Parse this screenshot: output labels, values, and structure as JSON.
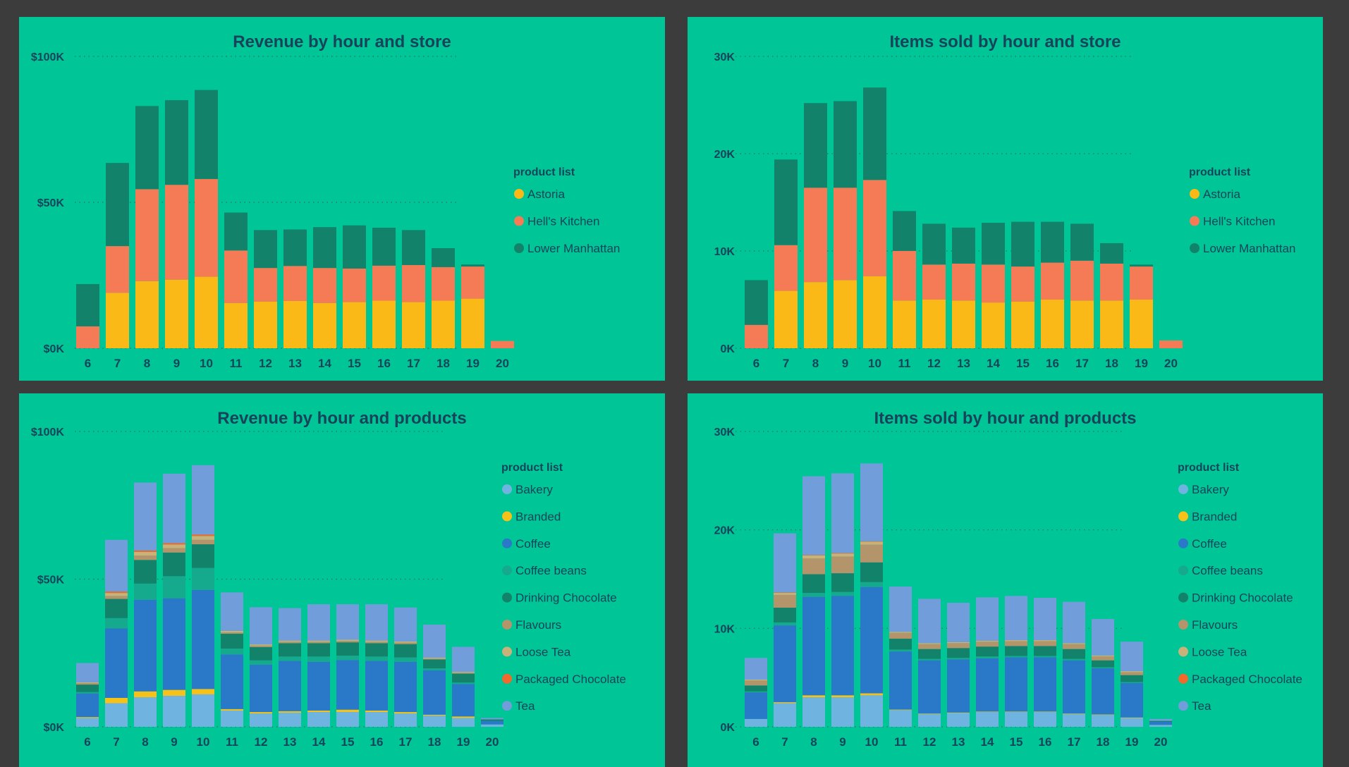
{
  "colors": {
    "background": "#3c3c3c",
    "panel": "#00c596",
    "text": "#17445a",
    "Astoria": "#fbb917",
    "Hell's Kitchen": "#f47b55",
    "Lower Manhattan": "#12836a",
    "Bakery": "#6fb3e0",
    "Branded": "#f6c21a",
    "Coffee": "#2a79c9",
    "Coffee beans": "#15a98e",
    "Drinking Chocolate": "#12836a",
    "Flavours": "#b4946b",
    "Loose Tea": "#c9b27a",
    "Packaged Chocolate": "#f2692c",
    "Tea": "#729ddb"
  },
  "chart_data": [
    {
      "type": "bar",
      "stacked": true,
      "title": "Revenue by hour and store",
      "categories": [
        "6",
        "7",
        "8",
        "9",
        "10",
        "11",
        "12",
        "13",
        "14",
        "15",
        "16",
        "17",
        "18",
        "19",
        "20"
      ],
      "ylim": [
        0,
        100000
      ],
      "yticks": [
        0,
        50000,
        100000
      ],
      "ytick_labels": [
        "$0K",
        "$50K",
        "$100K"
      ],
      "grid": true,
      "legend_title": "product list",
      "legend_position": "right",
      "series": [
        {
          "name": "Astoria",
          "values": [
            0,
            19000,
            23000,
            23500,
            24500,
            15500,
            16000,
            16200,
            15500,
            15800,
            16300,
            15800,
            16300,
            17000,
            0
          ]
        },
        {
          "name": "Hell's Kitchen",
          "values": [
            7500,
            16000,
            31500,
            32500,
            33500,
            18000,
            11500,
            12000,
            12000,
            11500,
            12000,
            12700,
            11500,
            11000,
            2500
          ]
        },
        {
          "name": "Lower Manhattan",
          "values": [
            14500,
            28500,
            28500,
            29000,
            30500,
            13000,
            13000,
            12500,
            14000,
            14800,
            13000,
            12000,
            6500,
            700,
            0
          ]
        }
      ]
    },
    {
      "type": "bar",
      "stacked": true,
      "title": "Items sold by hour and store",
      "categories": [
        "6",
        "7",
        "8",
        "9",
        "10",
        "11",
        "12",
        "13",
        "14",
        "15",
        "16",
        "17",
        "18",
        "19",
        "20"
      ],
      "ylim": [
        0,
        30000
      ],
      "yticks": [
        0,
        10000,
        20000,
        30000
      ],
      "ytick_labels": [
        "0K",
        "10K",
        "20K",
        "30K"
      ],
      "grid": true,
      "legend_title": "product list",
      "legend_position": "right",
      "series": [
        {
          "name": "Astoria",
          "values": [
            0,
            5900,
            6800,
            7000,
            7400,
            4900,
            5000,
            4900,
            4700,
            4800,
            5000,
            4900,
            4900,
            5000,
            0
          ]
        },
        {
          "name": "Hell's Kitchen",
          "values": [
            2400,
            4700,
            9700,
            9500,
            9900,
            5100,
            3600,
            3800,
            3900,
            3600,
            3800,
            4100,
            3800,
            3400,
            800
          ]
        },
        {
          "name": "Lower Manhattan",
          "values": [
            4600,
            8800,
            8700,
            8900,
            9500,
            4100,
            4200,
            3700,
            4300,
            4600,
            4200,
            3800,
            2100,
            200,
            0
          ]
        }
      ]
    },
    {
      "type": "bar",
      "stacked": true,
      "title": "Revenue by hour and products",
      "categories": [
        "6",
        "7",
        "8",
        "9",
        "10",
        "11",
        "12",
        "13",
        "14",
        "15",
        "16",
        "17",
        "18",
        "19",
        "20"
      ],
      "ylim": [
        0,
        100000
      ],
      "yticks": [
        0,
        50000,
        100000
      ],
      "ytick_labels": [
        "$0K",
        "$50K",
        "$100K"
      ],
      "grid": true,
      "legend_title": "product list",
      "legend_position": "right",
      "series": [
        {
          "name": "Bakery",
          "values": [
            3000,
            8000,
            10000,
            10500,
            11000,
            5500,
            4500,
            4800,
            5000,
            5000,
            5000,
            4500,
            3800,
            3000,
            800
          ]
        },
        {
          "name": "Branded",
          "values": [
            300,
            1800,
            2000,
            2000,
            1800,
            500,
            500,
            500,
            500,
            800,
            500,
            500,
            300,
            500,
            0
          ]
        },
        {
          "name": "Coffee",
          "values": [
            8000,
            23500,
            31000,
            31000,
            33500,
            18500,
            16000,
            17000,
            16500,
            16800,
            16800,
            17000,
            15000,
            11000,
            1200
          ]
        },
        {
          "name": "Coffee beans",
          "values": [
            500,
            3500,
            5500,
            7500,
            7500,
            2000,
            1500,
            1500,
            1800,
            1500,
            1500,
            1500,
            700,
            500,
            0
          ]
        },
        {
          "name": "Drinking Chocolate",
          "values": [
            2500,
            6500,
            8000,
            8000,
            8000,
            5000,
            4500,
            4500,
            4500,
            4500,
            4500,
            4500,
            3000,
            3000,
            500
          ]
        },
        {
          "name": "Flavours",
          "values": [
            500,
            1000,
            1500,
            1500,
            1500,
            500,
            500,
            500,
            500,
            500,
            500,
            500,
            300,
            300,
            0
          ]
        },
        {
          "name": "Loose Tea",
          "values": [
            300,
            1000,
            1200,
            1200,
            1300,
            500,
            400,
            400,
            400,
            400,
            400,
            400,
            300,
            300,
            0
          ]
        },
        {
          "name": "Packaged Chocolate",
          "values": [
            0,
            500,
            500,
            500,
            500,
            0,
            0,
            0,
            0,
            0,
            0,
            0,
            0,
            0,
            0
          ]
        },
        {
          "name": "Tea",
          "values": [
            6500,
            17500,
            23000,
            23500,
            23500,
            13000,
            12600,
            11000,
            12300,
            12000,
            12300,
            11500,
            11200,
            8500,
            500
          ]
        }
      ]
    },
    {
      "type": "bar",
      "stacked": true,
      "title": "Items sold by hour and products",
      "categories": [
        "6",
        "7",
        "8",
        "9",
        "10",
        "11",
        "12",
        "13",
        "14",
        "15",
        "16",
        "17",
        "18",
        "19",
        "20"
      ],
      "ylim": [
        0,
        30000
      ],
      "yticks": [
        0,
        10000,
        20000,
        30000
      ],
      "ytick_labels": [
        "0K",
        "10K",
        "20K",
        "30K"
      ],
      "grid": true,
      "legend_title": "product list",
      "legend_position": "right",
      "series": [
        {
          "name": "Bakery",
          "values": [
            800,
            2400,
            3000,
            3000,
            3200,
            1700,
            1300,
            1400,
            1500,
            1500,
            1500,
            1300,
            1200,
            900,
            200
          ]
        },
        {
          "name": "Branded",
          "values": [
            0,
            100,
            200,
            200,
            200,
            50,
            50,
            50,
            50,
            50,
            50,
            50,
            50,
            50,
            0
          ]
        },
        {
          "name": "Coffee",
          "values": [
            2700,
            7800,
            10000,
            10100,
            10800,
            5900,
            5400,
            5400,
            5400,
            5500,
            5500,
            5400,
            4700,
            3500,
            300
          ]
        },
        {
          "name": "Coffee beans",
          "values": [
            100,
            300,
            400,
            400,
            500,
            200,
            150,
            150,
            200,
            150,
            150,
            150,
            100,
            100,
            0
          ]
        },
        {
          "name": "Drinking Chocolate",
          "values": [
            600,
            1500,
            1900,
            1900,
            2000,
            1100,
            1000,
            1000,
            1000,
            1000,
            1000,
            1000,
            700,
            700,
            100
          ]
        },
        {
          "name": "Flavours",
          "values": [
            500,
            1300,
            1600,
            1700,
            1800,
            600,
            500,
            500,
            500,
            500,
            500,
            500,
            400,
            300,
            0
          ]
        },
        {
          "name": "Loose Tea",
          "values": [
            100,
            200,
            300,
            300,
            300,
            100,
            100,
            100,
            100,
            100,
            100,
            100,
            100,
            100,
            0
          ]
        },
        {
          "name": "Packaged Chocolate",
          "values": [
            0,
            50,
            50,
            50,
            50,
            0,
            0,
            0,
            0,
            0,
            0,
            0,
            0,
            0,
            0
          ]
        },
        {
          "name": "Tea",
          "values": [
            2200,
            6000,
            8000,
            8100,
            7900,
            4600,
            4500,
            4000,
            4400,
            4500,
            4300,
            4200,
            3700,
            3000,
            200
          ]
        }
      ]
    }
  ]
}
